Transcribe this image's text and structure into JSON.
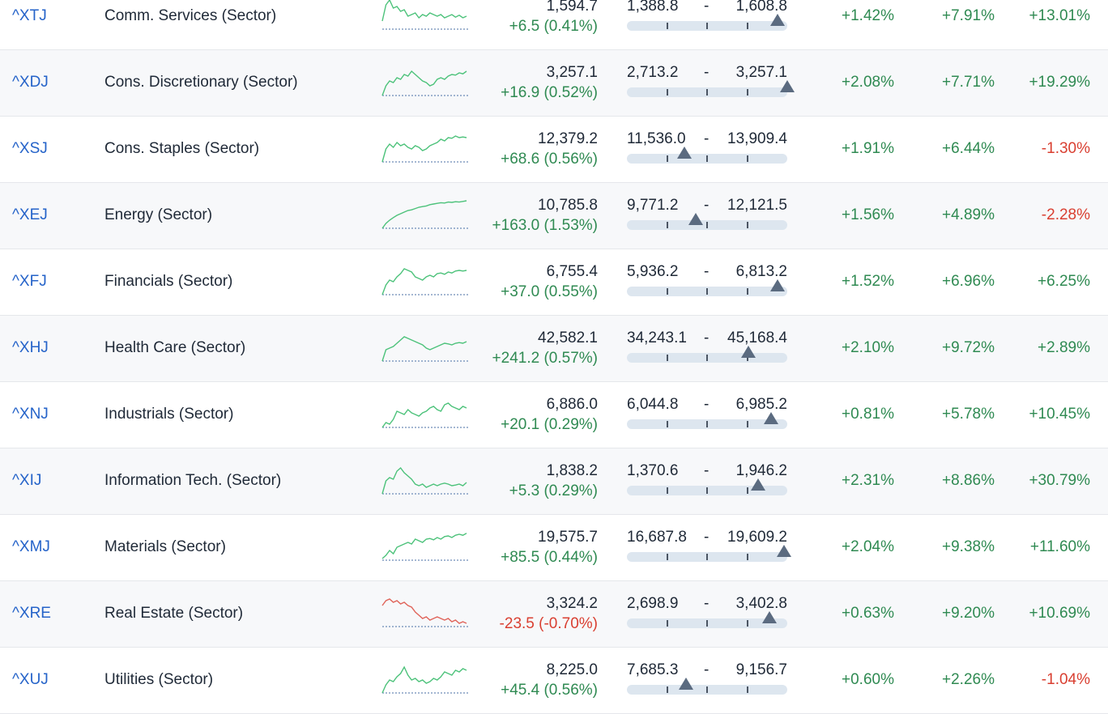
{
  "rows": [
    {
      "symbol": "^XTJ",
      "name": "Comm. Services (Sector)",
      "price": "1,594.7",
      "change": "+6.5 (0.41%)",
      "change_dir": "pos",
      "range_low": "1,388.8",
      "range_sep": "-",
      "range_high": "1,608.8",
      "range_fraction": 0.94,
      "perf_1": "+1.42%",
      "perf_2": "+7.91%",
      "perf_3": "+13.01%",
      "spark": [
        0.3,
        0.8,
        0.95,
        0.7,
        0.75,
        0.6,
        0.65,
        0.45,
        0.5,
        0.55,
        0.4,
        0.5,
        0.45,
        0.55,
        0.5,
        0.45,
        0.5,
        0.4,
        0.45,
        0.5,
        0.42,
        0.48,
        0.4,
        0.45
      ]
    },
    {
      "symbol": "^XDJ",
      "name": "Cons. Discretionary (Sector)",
      "price": "3,257.1",
      "change": "+16.9 (0.52%)",
      "change_dir": "pos",
      "range_low": "2,713.2",
      "range_sep": "-",
      "range_high": "3,257.1",
      "range_fraction": 1.0,
      "perf_1": "+2.08%",
      "perf_2": "+7.71%",
      "perf_3": "+19.29%",
      "spark": [
        0.05,
        0.35,
        0.5,
        0.45,
        0.6,
        0.55,
        0.7,
        0.65,
        0.8,
        0.7,
        0.6,
        0.5,
        0.45,
        0.35,
        0.4,
        0.55,
        0.6,
        0.55,
        0.65,
        0.7,
        0.68,
        0.75,
        0.72,
        0.8
      ]
    },
    {
      "symbol": "^XSJ",
      "name": "Cons. Staples (Sector)",
      "price": "12,379.2",
      "change": "+68.6 (0.56%)",
      "change_dir": "pos",
      "range_low": "11,536.0",
      "range_sep": "-",
      "range_high": "13,909.4",
      "range_fraction": 0.36,
      "perf_1": "+1.91%",
      "perf_2": "+6.44%",
      "perf_3": "-1.30%",
      "spark": [
        0.05,
        0.45,
        0.6,
        0.5,
        0.65,
        0.55,
        0.6,
        0.5,
        0.45,
        0.55,
        0.5,
        0.4,
        0.45,
        0.55,
        0.6,
        0.65,
        0.75,
        0.7,
        0.8,
        0.78,
        0.85,
        0.8,
        0.82,
        0.8
      ]
    },
    {
      "symbol": "^XEJ",
      "name": "Energy (Sector)",
      "price": "10,785.8",
      "change": "+163.0 (1.53%)",
      "change_dir": "pos",
      "range_low": "9,771.2",
      "range_sep": "-",
      "range_high": "12,121.5",
      "range_fraction": 0.43,
      "perf_1": "+1.56%",
      "perf_2": "+4.89%",
      "perf_3": "-2.28%",
      "spark": [
        0.05,
        0.2,
        0.3,
        0.38,
        0.45,
        0.5,
        0.55,
        0.6,
        0.62,
        0.66,
        0.7,
        0.72,
        0.74,
        0.78,
        0.8,
        0.82,
        0.84,
        0.83,
        0.86,
        0.85,
        0.87,
        0.86,
        0.88,
        0.9
      ]
    },
    {
      "symbol": "^XFJ",
      "name": "Financials (Sector)",
      "price": "6,755.4",
      "change": "+37.0 (0.55%)",
      "change_dir": "pos",
      "range_low": "5,936.2",
      "range_sep": "-",
      "range_high": "6,813.2",
      "range_fraction": 0.94,
      "perf_1": "+1.52%",
      "perf_2": "+6.96%",
      "perf_3": "+6.25%",
      "spark": [
        0.05,
        0.35,
        0.5,
        0.45,
        0.6,
        0.7,
        0.85,
        0.8,
        0.75,
        0.6,
        0.55,
        0.5,
        0.6,
        0.65,
        0.6,
        0.7,
        0.72,
        0.68,
        0.75,
        0.72,
        0.78,
        0.8,
        0.78,
        0.8
      ]
    },
    {
      "symbol": "^XHJ",
      "name": "Health Care (Sector)",
      "price": "42,582.1",
      "change": "+241.2 (0.57%)",
      "change_dir": "pos",
      "range_low": "34,243.1",
      "range_sep": "-",
      "range_high": "45,168.4",
      "range_fraction": 0.76,
      "perf_1": "+2.10%",
      "perf_2": "+9.72%",
      "perf_3": "+2.89%",
      "spark": [
        0.05,
        0.4,
        0.45,
        0.5,
        0.6,
        0.7,
        0.8,
        0.75,
        0.7,
        0.65,
        0.6,
        0.55,
        0.45,
        0.4,
        0.45,
        0.5,
        0.55,
        0.6,
        0.58,
        0.55,
        0.6,
        0.62,
        0.6,
        0.65
      ]
    },
    {
      "symbol": "^XNJ",
      "name": "Industrials (Sector)",
      "price": "6,886.0",
      "change": "+20.1 (0.29%)",
      "change_dir": "pos",
      "range_low": "6,044.8",
      "range_sep": "-",
      "range_high": "6,985.2",
      "range_fraction": 0.9,
      "perf_1": "+0.81%",
      "perf_2": "+5.78%",
      "perf_3": "+10.45%",
      "spark": [
        0.05,
        0.2,
        0.15,
        0.3,
        0.55,
        0.5,
        0.45,
        0.6,
        0.5,
        0.45,
        0.4,
        0.5,
        0.55,
        0.65,
        0.7,
        0.6,
        0.55,
        0.75,
        0.8,
        0.7,
        0.65,
        0.6,
        0.7,
        0.65
      ]
    },
    {
      "symbol": "^XIJ",
      "name": "Information Tech. (Sector)",
      "price": "1,838.2",
      "change": "+5.3 (0.29%)",
      "change_dir": "pos",
      "range_low": "1,370.6",
      "range_sep": "-",
      "range_high": "1,946.2",
      "range_fraction": 0.82,
      "perf_1": "+2.31%",
      "perf_2": "+8.86%",
      "perf_3": "+30.79%",
      "spark": [
        0.05,
        0.45,
        0.55,
        0.5,
        0.75,
        0.85,
        0.7,
        0.6,
        0.5,
        0.35,
        0.3,
        0.35,
        0.25,
        0.3,
        0.35,
        0.3,
        0.35,
        0.38,
        0.35,
        0.3,
        0.32,
        0.35,
        0.3,
        0.4
      ]
    },
    {
      "symbol": "^XMJ",
      "name": "Materials (Sector)",
      "price": "19,575.7",
      "change": "+85.5 (0.44%)",
      "change_dir": "pos",
      "range_low": "16,687.8",
      "range_sep": "-",
      "range_high": "19,609.2",
      "range_fraction": 0.98,
      "perf_1": "+2.04%",
      "perf_2": "+9.38%",
      "perf_3": "+11.60%",
      "spark": [
        0.1,
        0.2,
        0.35,
        0.25,
        0.45,
        0.5,
        0.55,
        0.6,
        0.55,
        0.7,
        0.65,
        0.6,
        0.7,
        0.72,
        0.68,
        0.75,
        0.7,
        0.78,
        0.8,
        0.75,
        0.82,
        0.85,
        0.82,
        0.88
      ]
    },
    {
      "symbol": "^XRE",
      "name": "Real Estate (Sector)",
      "price": "3,324.2",
      "change": "-23.5 (-0.70%)",
      "change_dir": "neg",
      "range_low": "2,698.9",
      "range_sep": "-",
      "range_high": "3,402.8",
      "range_fraction": 0.89,
      "perf_1": "+0.63%",
      "perf_2": "+9.20%",
      "perf_3": "+10.69%",
      "spark": [
        0.7,
        0.85,
        0.9,
        0.8,
        0.85,
        0.75,
        0.8,
        0.7,
        0.65,
        0.5,
        0.4,
        0.3,
        0.35,
        0.25,
        0.3,
        0.35,
        0.3,
        0.25,
        0.3,
        0.2,
        0.25,
        0.15,
        0.2,
        0.15
      ]
    },
    {
      "symbol": "^XUJ",
      "name": "Utilities (Sector)",
      "price": "8,225.0",
      "change": "+45.4 (0.56%)",
      "change_dir": "pos",
      "range_low": "7,685.3",
      "range_sep": "-",
      "range_high": "9,156.7",
      "range_fraction": 0.37,
      "perf_1": "+0.60%",
      "perf_2": "+2.26%",
      "perf_3": "-1.04%",
      "spark": [
        0.05,
        0.3,
        0.45,
        0.4,
        0.55,
        0.65,
        0.85,
        0.6,
        0.45,
        0.5,
        0.4,
        0.45,
        0.35,
        0.4,
        0.5,
        0.45,
        0.55,
        0.7,
        0.65,
        0.6,
        0.75,
        0.7,
        0.8,
        0.75
      ]
    }
  ]
}
